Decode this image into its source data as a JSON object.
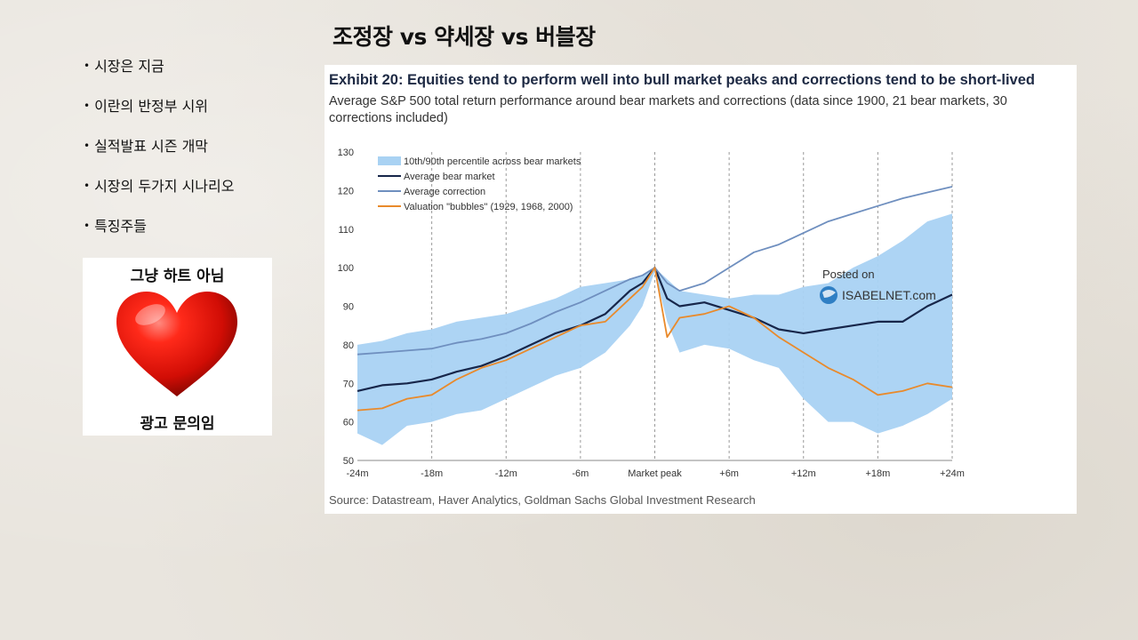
{
  "slide": {
    "title": "조정장 vs 약세장 vs 버블장",
    "bullets": [
      "시장은 지금",
      "이란의 반정부 시위",
      "실적발표 시즌 개막",
      "시장의 두가지 시나리오",
      "특징주들"
    ],
    "bullet_glyph": "•"
  },
  "ad": {
    "top_text": "그냥 하트 아님",
    "bottom_text": "광고 문의임",
    "heart_color": "#e3120b"
  },
  "watermark": {
    "line1": "Posted on",
    "line2": "ISABELNET.com"
  },
  "chart_data": {
    "type": "line",
    "title": "Exhibit 20: Equities tend to perform well into bull market peaks and corrections tend to be short-lived",
    "subtitle": "Average S&P 500 total return performance around bear markets and corrections (data since 1900, 21 bear markets, 30 corrections included)",
    "source": "Source: Datastream, Haver Analytics, Goldman Sachs Global Investment Research",
    "xlabel": "",
    "ylabel": "",
    "x_ticks": [
      "-24m",
      "-18m",
      "-12m",
      "-6m",
      "Market peak",
      "+6m",
      "+12m",
      "+18m",
      "+24m"
    ],
    "x_tick_months": [
      -24,
      -18,
      -12,
      -6,
      0,
      6,
      12,
      18,
      24
    ],
    "xlim": [
      -24,
      24
    ],
    "y_ticks": [
      50,
      60,
      70,
      80,
      90,
      100,
      110,
      120,
      130
    ],
    "ylim": [
      50,
      130
    ],
    "legend_position": "top-left",
    "x": [
      -24,
      -22,
      -20,
      -18,
      -16,
      -14,
      -12,
      -10,
      -8,
      -6,
      -4,
      -2,
      -1,
      0,
      1,
      2,
      4,
      6,
      8,
      10,
      12,
      14,
      16,
      18,
      20,
      22,
      24
    ],
    "band": {
      "name": "10th/90th percentile across bear markets",
      "color": "#a9d2f3",
      "lower": [
        57,
        54,
        59,
        60,
        62,
        63,
        66,
        69,
        72,
        74,
        78,
        85,
        90,
        99,
        86,
        78,
        80,
        79,
        76,
        74,
        66,
        60,
        60,
        57,
        59,
        62,
        66
      ],
      "upper": [
        80,
        81,
        83,
        84,
        86,
        87,
        88,
        90,
        92,
        95,
        96,
        97,
        98,
        100,
        97,
        94,
        93,
        92,
        93,
        93,
        95,
        96,
        100,
        103,
        107,
        112,
        114
      ]
    },
    "series": [
      {
        "name": "Average bear market",
        "color": "#17264a",
        "values": [
          68,
          69.5,
          70,
          71,
          73,
          74.5,
          77,
          80,
          83,
          85,
          88,
          94,
          96,
          100,
          92,
          90,
          91,
          89,
          87,
          84,
          83,
          84,
          85,
          86,
          86,
          90,
          93
        ]
      },
      {
        "name": "Average correction",
        "color": "#6f8fbf",
        "values": [
          77.5,
          78,
          78.5,
          79,
          80.5,
          81.5,
          83,
          85.5,
          88.5,
          91,
          94,
          97,
          98,
          100,
          96,
          94,
          96,
          100,
          104,
          106,
          109,
          112,
          114,
          116,
          118,
          119.5,
          121
        ]
      },
      {
        "name": "Valuation \"bubbles\" (1929, 1968, 2000)",
        "color": "#e98a2b",
        "values": [
          63,
          63.5,
          66,
          67,
          71,
          74,
          76,
          79,
          82,
          85,
          86,
          92,
          95,
          100,
          82,
          87,
          88,
          90,
          87,
          82,
          78,
          74,
          71,
          67,
          68,
          70,
          69
        ]
      }
    ]
  }
}
